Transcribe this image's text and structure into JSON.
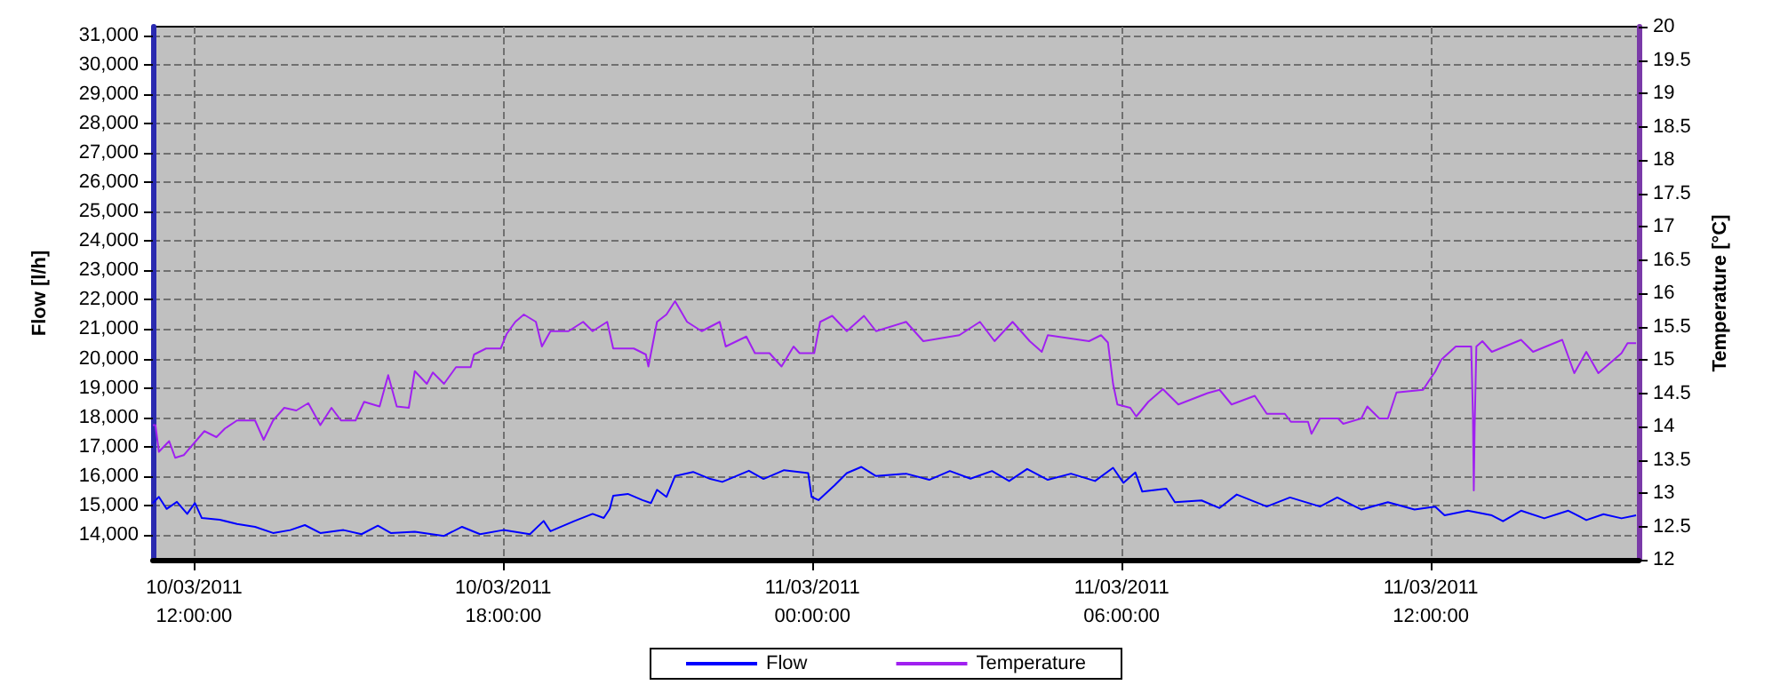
{
  "chart_data": {
    "type": "line",
    "ylabel": "Flow [l/h]",
    "y2label": "Temperature [°C]",
    "xlim": [
      "2011-03-10T11:12",
      "2011-03-11T16:02"
    ],
    "xticks": [
      {
        "value": "2011-03-10T12:00",
        "label": "10/03/2011\n12:00:00"
      },
      {
        "value": "2011-03-10T18:00",
        "label": "10/03/2011\n18:00:00"
      },
      {
        "value": "2011-03-11T00:00",
        "label": "11/03/2011\n00:00:00"
      },
      {
        "value": "2011-03-11T06:00",
        "label": "11/03/2011\n06:00:00"
      },
      {
        "value": "2011-03-11T12:00",
        "label": "11/03/2011\n12:00:00"
      }
    ],
    "ylim": [
      13150,
      31300
    ],
    "yticks": [
      {
        "value": 14000,
        "label": "14,000"
      },
      {
        "value": 15000,
        "label": "15,000"
      },
      {
        "value": 16000,
        "label": "16,000"
      },
      {
        "value": 17000,
        "label": "17,000"
      },
      {
        "value": 18000,
        "label": "18,000"
      },
      {
        "value": 19000,
        "label": "19,000"
      },
      {
        "value": 20000,
        "label": "20,000"
      },
      {
        "value": 21000,
        "label": "21,000"
      },
      {
        "value": 22000,
        "label": "22,000"
      },
      {
        "value": 23000,
        "label": "23,000"
      },
      {
        "value": 24000,
        "label": "24,000"
      },
      {
        "value": 25000,
        "label": "25,000"
      },
      {
        "value": 26000,
        "label": "26,000"
      },
      {
        "value": 27000,
        "label": "27,000"
      },
      {
        "value": 28000,
        "label": "28,000"
      },
      {
        "value": 29000,
        "label": "29,000"
      },
      {
        "value": 30000,
        "label": "30,000"
      },
      {
        "value": 31000,
        "label": "31,000"
      }
    ],
    "y2lim": [
      12,
      20
    ],
    "y2ticks": [
      12,
      12.5,
      13,
      13.5,
      14,
      14.5,
      15,
      15.5,
      16,
      16.5,
      17,
      17.5,
      18,
      18.5,
      19,
      19.5,
      20
    ],
    "grid": true,
    "legend": "bottom",
    "marker": "none",
    "line_style": "solid",
    "series": [
      {
        "name": "Flow",
        "color": "#0000ff",
        "x": [
          "2011-03-10T11:12",
          "2011-03-10T11:19",
          "2011-03-10T11:28",
          "2011-03-10T11:40",
          "2011-03-10T11:52",
          "2011-03-10T12:01",
          "2011-03-10T12:09",
          "2011-03-10T12:30",
          "2011-03-10T12:50",
          "2011-03-10T13:11",
          "2011-03-10T13:32",
          "2011-03-10T13:52",
          "2011-03-10T14:09",
          "2011-03-10T14:27",
          "2011-03-10T14:54",
          "2011-03-10T15:15",
          "2011-03-10T15:34",
          "2011-03-10T15:49",
          "2011-03-10T16:17",
          "2011-03-10T16:51",
          "2011-03-10T17:12",
          "2011-03-10T17:33",
          "2011-03-10T18:00",
          "2011-03-10T18:31",
          "2011-03-10T18:47",
          "2011-03-10T18:55",
          "2011-03-10T19:23",
          "2011-03-10T19:44",
          "2011-03-10T19:57",
          "2011-03-10T20:04",
          "2011-03-10T20:08",
          "2011-03-10T20:25",
          "2011-03-10T20:42",
          "2011-03-10T20:52",
          "2011-03-10T20:59",
          "2011-03-10T21:10",
          "2011-03-10T21:20",
          "2011-03-10T21:41",
          "2011-03-10T22:01",
          "2011-03-10T22:15",
          "2011-03-10T22:46",
          "2011-03-10T23:03",
          "2011-03-10T23:27",
          "2011-03-10T23:55",
          "2011-03-10T23:59",
          "2011-03-11T00:07",
          "2011-03-11T00:26",
          "2011-03-11T00:40",
          "2011-03-11T00:57",
          "2011-03-11T01:14",
          "2011-03-11T01:49",
          "2011-03-11T02:16",
          "2011-03-11T02:40",
          "2011-03-11T03:04",
          "2011-03-11T03:29",
          "2011-03-11T03:49",
          "2011-03-11T04:10",
          "2011-03-11T04:34",
          "2011-03-11T05:01",
          "2011-03-11T05:29",
          "2011-03-11T05:50",
          "2011-03-11T06:02",
          "2011-03-11T06:16",
          "2011-03-11T06:24",
          "2011-03-11T06:52",
          "2011-03-11T07:02",
          "2011-03-11T07:33",
          "2011-03-11T07:54",
          "2011-03-11T08:14",
          "2011-03-11T08:49",
          "2011-03-11T09:16",
          "2011-03-11T09:51",
          "2011-03-11T10:11",
          "2011-03-11T10:39",
          "2011-03-11T11:10",
          "2011-03-11T11:41",
          "2011-03-11T12:05",
          "2011-03-11T12:16",
          "2011-03-11T12:43",
          "2011-03-11T13:11",
          "2011-03-11T13:24",
          "2011-03-11T13:45",
          "2011-03-11T14:12",
          "2011-03-11T14:40",
          "2011-03-11T15:01",
          "2011-03-11T15:21",
          "2011-03-11T15:42",
          "2011-03-11T15:59"
        ],
        "values": [
          15080,
          15290,
          14880,
          15120,
          14710,
          15080,
          14570,
          14510,
          14370,
          14270,
          14060,
          14160,
          14330,
          14060,
          14160,
          14020,
          14310,
          14060,
          14100,
          13960,
          14270,
          14020,
          14160,
          14020,
          14470,
          14120,
          14470,
          14710,
          14570,
          14880,
          15330,
          15390,
          15180,
          15080,
          15530,
          15290,
          16000,
          16140,
          15900,
          15800,
          16180,
          15900,
          16200,
          16100,
          15290,
          15180,
          15690,
          16100,
          16310,
          16000,
          16080,
          15870,
          16170,
          15910,
          16170,
          15830,
          16240,
          15870,
          16080,
          15830,
          16280,
          15770,
          16120,
          15470,
          15570,
          15110,
          15170,
          14910,
          15370,
          14960,
          15270,
          14960,
          15270,
          14860,
          15110,
          14860,
          14960,
          14660,
          14820,
          14660,
          14460,
          14820,
          14560,
          14820,
          14500,
          14700,
          14560,
          14660
        ]
      },
      {
        "name": "Temperature",
        "color": "#a020f0",
        "axis": "y2",
        "x": [
          "2011-03-10T11:12",
          "2011-03-10T11:15",
          "2011-03-10T11:19",
          "2011-03-10T11:31",
          "2011-03-10T11:38",
          "2011-03-10T11:48",
          "2011-03-10T12:02",
          "2011-03-10T12:12",
          "2011-03-10T12:26",
          "2011-03-10T12:36",
          "2011-03-10T12:50",
          "2011-03-10T13:11",
          "2011-03-10T13:21",
          "2011-03-10T13:32",
          "2011-03-10T13:45",
          "2011-03-10T13:59",
          "2011-03-10T14:13",
          "2011-03-10T14:27",
          "2011-03-10T14:40",
          "2011-03-10T14:51",
          "2011-03-10T15:08",
          "2011-03-10T15:18",
          "2011-03-10T15:36",
          "2011-03-10T15:46",
          "2011-03-10T15:56",
          "2011-03-10T16:10",
          "2011-03-10T16:17",
          "2011-03-10T16:31",
          "2011-03-10T16:38",
          "2011-03-10T16:51",
          "2011-03-10T17:05",
          "2011-03-10T17:22",
          "2011-03-10T17:26",
          "2011-03-10T17:40",
          "2011-03-10T17:57",
          "2011-03-10T18:04",
          "2011-03-10T18:14",
          "2011-03-10T18:24",
          "2011-03-10T18:38",
          "2011-03-10T18:45",
          "2011-03-10T18:55",
          "2011-03-10T19:16",
          "2011-03-10T19:33",
          "2011-03-10T19:44",
          "2011-03-10T20:01",
          "2011-03-10T20:08",
          "2011-03-10T20:32",
          "2011-03-10T20:46",
          "2011-03-10T20:49",
          "2011-03-10T20:59",
          "2011-03-10T21:10",
          "2011-03-10T21:20",
          "2011-03-10T21:34",
          "2011-03-10T21:51",
          "2011-03-10T22:12",
          "2011-03-10T22:19",
          "2011-03-10T22:43",
          "2011-03-10T22:53",
          "2011-03-10T23:10",
          "2011-03-10T23:24",
          "2011-03-10T23:38",
          "2011-03-10T23:45",
          "2011-03-11T00:02",
          "2011-03-11T00:09",
          "2011-03-11T00:23",
          "2011-03-11T00:40",
          "2011-03-11T01:00",
          "2011-03-11T01:14",
          "2011-03-11T01:49",
          "2011-03-11T02:09",
          "2011-03-11T02:51",
          "2011-03-11T03:15",
          "2011-03-11T03:32",
          "2011-03-11T03:53",
          "2011-03-11T04:13",
          "2011-03-11T04:27",
          "2011-03-11T04:34",
          "2011-03-11T05:22",
          "2011-03-11T05:36",
          "2011-03-11T05:44",
          "2011-03-11T05:50",
          "2011-03-11T05:55",
          "2011-03-11T06:10",
          "2011-03-11T06:17",
          "2011-03-11T06:31",
          "2011-03-11T06:48",
          "2011-03-11T07:06",
          "2011-03-11T07:40",
          "2011-03-11T07:54",
          "2011-03-11T08:08",
          "2011-03-11T08:35",
          "2011-03-11T08:49",
          "2011-03-11T09:10",
          "2011-03-11T09:17",
          "2011-03-11T09:37",
          "2011-03-11T09:41",
          "2011-03-11T09:51",
          "2011-03-11T10:12",
          "2011-03-11T10:18",
          "2011-03-11T10:39",
          "2011-03-11T10:46",
          "2011-03-11T11:00",
          "2011-03-11T11:10",
          "2011-03-11T11:20",
          "2011-03-11T11:51",
          "2011-03-11T11:58",
          "2011-03-11T12:05",
          "2011-03-11T12:12",
          "2011-03-11T12:29",
          "2011-03-11T12:47",
          "2011-03-11T12:49",
          "2011-03-11T12:50",
          "2011-03-11T12:51",
          "2011-03-11T12:53",
          "2011-03-11T13:00",
          "2011-03-11T13:11",
          "2011-03-11T13:45",
          "2011-03-11T13:59",
          "2011-03-11T14:33",
          "2011-03-11T14:47",
          "2011-03-11T15:01",
          "2011-03-11T15:15",
          "2011-03-11T15:42",
          "2011-03-11T15:49",
          "2011-03-11T15:59"
        ],
        "values": [
          14.02,
          14.02,
          13.62,
          13.78,
          13.53,
          13.57,
          13.78,
          13.93,
          13.84,
          13.97,
          14.09,
          14.09,
          13.8,
          14.09,
          14.28,
          14.24,
          14.35,
          14.02,
          14.28,
          14.09,
          14.09,
          14.37,
          14.3,
          14.77,
          14.3,
          14.28,
          14.83,
          14.64,
          14.81,
          14.64,
          14.89,
          14.89,
          15.08,
          15.17,
          15.17,
          15.39,
          15.57,
          15.68,
          15.57,
          15.2,
          15.43,
          15.43,
          15.57,
          15.43,
          15.57,
          15.17,
          15.17,
          15.08,
          14.9,
          15.57,
          15.68,
          15.88,
          15.57,
          15.43,
          15.57,
          15.2,
          15.35,
          15.1,
          15.1,
          14.9,
          15.2,
          15.1,
          15.1,
          15.57,
          15.66,
          15.43,
          15.66,
          15.43,
          15.57,
          15.28,
          15.37,
          15.57,
          15.28,
          15.57,
          15.28,
          15.12,
          15.37,
          15.28,
          15.37,
          15.26,
          14.64,
          14.33,
          14.28,
          14.15,
          14.37,
          14.56,
          14.33,
          14.5,
          14.55,
          14.33,
          14.46,
          14.19,
          14.19,
          14.07,
          14.07,
          13.89,
          14.12,
          14.12,
          14.04,
          14.12,
          14.3,
          14.12,
          14.12,
          14.51,
          14.55,
          14.69,
          14.82,
          15.0,
          15.2,
          15.2,
          14.17,
          13.04,
          14.0,
          15.2,
          15.28,
          15.12,
          15.3,
          15.12,
          15.3,
          14.8,
          15.12,
          14.8,
          15.1,
          15.25,
          15.25
        ]
      }
    ]
  }
}
